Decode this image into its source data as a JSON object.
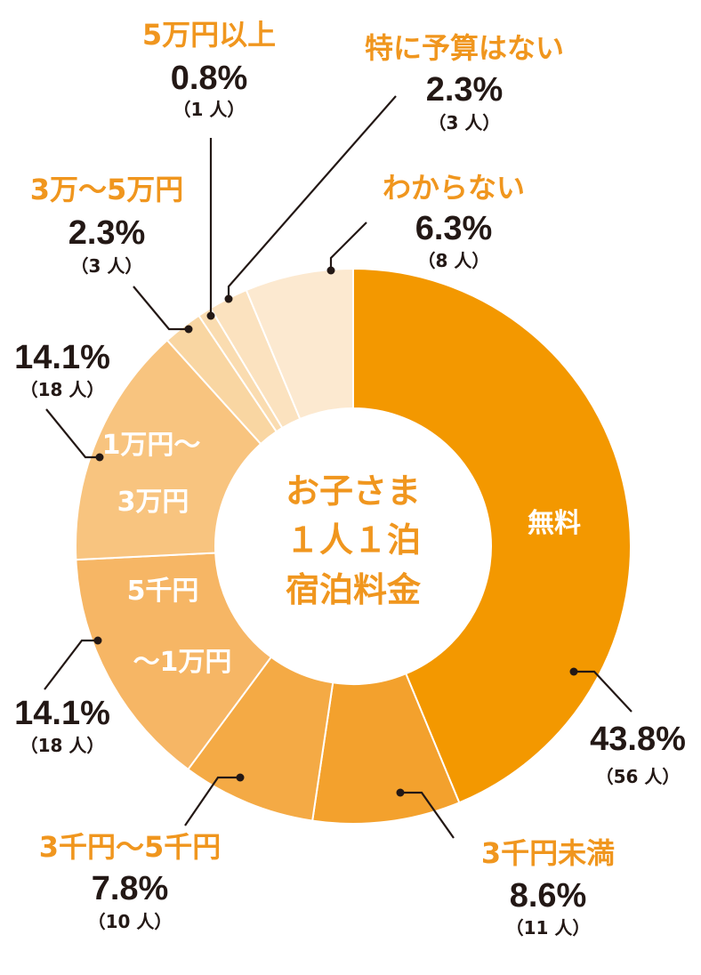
{
  "chart_data": {
    "type": "pie",
    "style": "donut",
    "title_lines": [
      "お子さま",
      "１人１泊",
      "宿泊料金"
    ],
    "unit": "%",
    "slices": [
      {
        "label": "無料",
        "inner_label": [
          "無料"
        ],
        "value": 43.8,
        "pct_text": "43.8%",
        "count_text": "（56 人）",
        "color": "#f39800"
      },
      {
        "label": "3千円未満",
        "value": 8.6,
        "pct_text": "8.6%",
        "count_text": "（11 人）",
        "color": "#f3a12d"
      },
      {
        "label": "3千円～5千円",
        "value": 7.8,
        "pct_text": "7.8%",
        "count_text": "（10 人）",
        "color": "#f4aa45"
      },
      {
        "label": "5千円～1万円",
        "inner_label": [
          "5千円",
          "～1万円"
        ],
        "value": 14.1,
        "pct_text": "14.1%",
        "count_text": "（18 人）",
        "color": "#f6b665"
      },
      {
        "label": "1万円～3万円",
        "inner_label": [
          "1万円～",
          "3万円"
        ],
        "value": 14.1,
        "pct_text": "14.1%",
        "count_text": "（18 人）",
        "color": "#f8c47f"
      },
      {
        "label": "3万～5万円",
        "value": 2.3,
        "pct_text": "2.3%",
        "count_text": "（3 人）",
        "color": "#f9d6a2"
      },
      {
        "label": "5万円以上",
        "value": 0.8,
        "pct_text": "0.8%",
        "count_text": "（1 人）",
        "color": "#fadcb0"
      },
      {
        "label": "特に予算はない",
        "value": 2.3,
        "pct_text": "2.3%",
        "count_text": "（3 人）",
        "color": "#fbe2bf"
      },
      {
        "label": "わからない",
        "value": 6.3,
        "pct_text": "6.3%",
        "count_text": "（8 人）",
        "color": "#fce9d0"
      }
    ]
  }
}
